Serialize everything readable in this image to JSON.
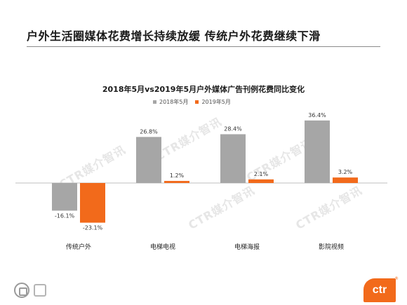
{
  "slide": {
    "title": "户外生活圈媒体花费增长持续放缓 传统户外花费继续下滑",
    "logo_text": "ctr",
    "logo_mark": "®",
    "watermark_text": "CTR媒介智讯"
  },
  "colors": {
    "series_2018": "#a6a6a6",
    "series_2019": "#f26a1b",
    "brand": "#f26a1b"
  },
  "chart_data": {
    "type": "bar",
    "title": "2018年5月vs2019年5月户外媒体广告刊例花费同比变化",
    "categories": [
      "传统户外",
      "电梯电视",
      "电梯海报",
      "影院视频"
    ],
    "series": [
      {
        "name": "2018年5月",
        "values": [
          -16.1,
          26.8,
          28.4,
          36.4
        ]
      },
      {
        "name": "2019年5月",
        "values": [
          -23.1,
          1.2,
          2.1,
          3.2
        ]
      }
    ],
    "value_suffix": "%",
    "legend": "top",
    "grid": false,
    "ylim": [
      -26,
      38
    ]
  }
}
